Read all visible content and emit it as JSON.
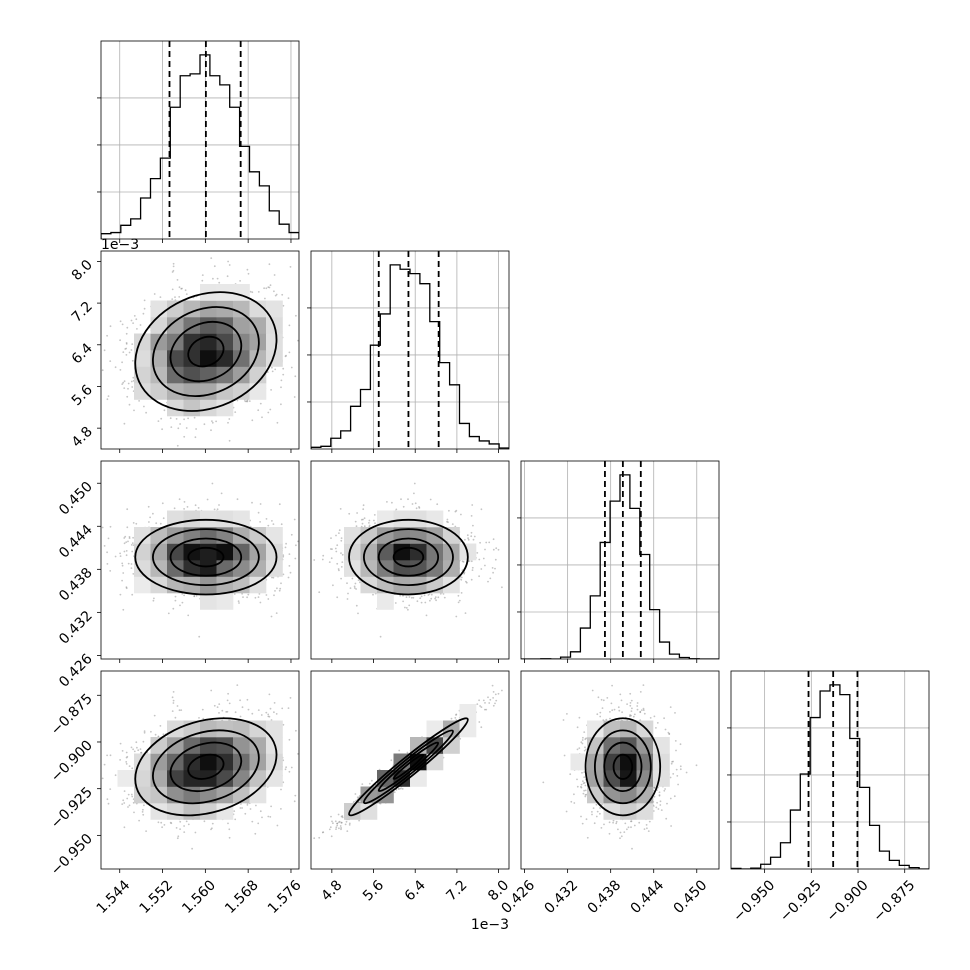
{
  "chart_data": {
    "type": "corner",
    "parameters": [
      {
        "range": [
          1.5405,
          1.5775
        ],
        "ticks": [
          1.544,
          1.552,
          1.56,
          1.568,
          1.576
        ],
        "tick_labels": [
          "1.544",
          "1.552",
          "1.560",
          "1.568",
          "1.576"
        ],
        "quantiles": [
          1.5533,
          1.5601,
          1.5666
        ],
        "sigma": 0.0066,
        "offset_label": ""
      },
      {
        "range": [
          4.4,
          8.2
        ],
        "ticks": [
          4.8,
          5.6,
          6.4,
          7.2,
          8.0
        ],
        "tick_labels": [
          "4.8",
          "5.6",
          "6.4",
          "7.2",
          "8.0"
        ],
        "quantiles": [
          5.7,
          6.27,
          6.85
        ],
        "sigma": 0.57,
        "offset_label": "1e−3"
      },
      {
        "range": [
          0.4255,
          0.4531
        ],
        "ticks": [
          0.426,
          0.432,
          0.438,
          0.444,
          0.45
        ],
        "tick_labels": [
          "0.426",
          "0.432",
          "0.438",
          "0.444",
          "0.450"
        ],
        "quantiles": [
          0.4372,
          0.4397,
          0.4422
        ],
        "sigma": 0.0026,
        "offset_label": ""
      },
      {
        "range": [
          -0.968,
          -0.862
        ],
        "ticks": [
          -0.95,
          -0.925,
          -0.9,
          -0.875
        ],
        "tick_labels": [
          "−0.950",
          "−0.925",
          "−0.900",
          "−0.875"
        ],
        "quantiles": [
          -0.9265,
          -0.9133,
          -0.9003
        ],
        "sigma": 0.013,
        "offset_label": ""
      }
    ],
    "correlations": [
      [
        1,
        0.2,
        0,
        0.25
      ],
      [
        0.2,
        1,
        0,
        0.97
      ],
      [
        0,
        0,
        1,
        0
      ],
      [
        0.25,
        0.97,
        0,
        1
      ]
    ],
    "histogram_bins": 20,
    "contour_levels_sigma": [
      0.5,
      1.0,
      1.5,
      2.0
    ],
    "quantile_line_style": "dashed",
    "grid": true,
    "colors": {
      "contour": "#000000",
      "points": "#7f7f7f",
      "hist": "#000000"
    }
  }
}
